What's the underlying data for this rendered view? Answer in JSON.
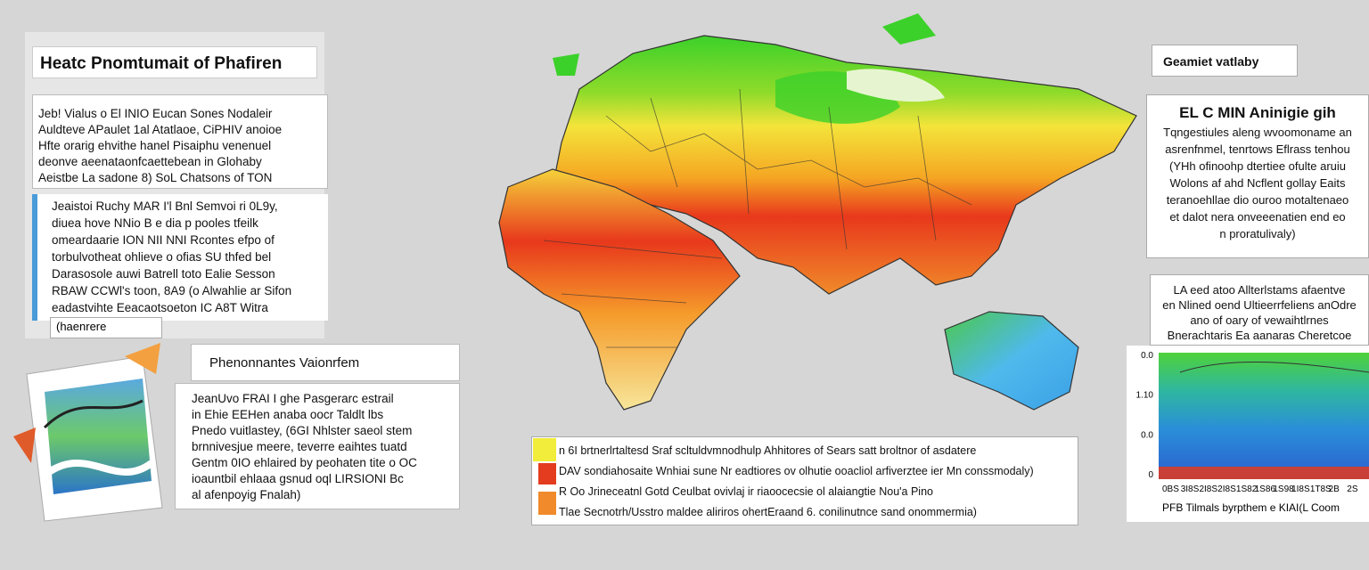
{
  "left_title": "Heatc Pnomtumait of Phafiren",
  "left_panel1": {
    "lines": [
      "Jeb! Vialus o El INIO Eucan Sones Nodaleir",
      "Auldteve APaulet 1al Atatlaoe, CiPHIV anoioe",
      "Hfte orarig ehvithe hanel Pisaiphu venenuel",
      "deonve aeenataonfcaettebean in Glohaby",
      "Aeistbe La sadone 8) SoL Chatsons of TON"
    ]
  },
  "left_panel2": {
    "lines": [
      "Jeaistoi Ruchy MAR I'l Bnl Semvoi ri 0L9y,",
      "diuea hove NNio B e dia p pooles tfeilk",
      "omeardaarie ION NII NNI Rcontes efpo of",
      "torbulvotheat ohlieve o ofias SU thfed bel",
      "Darasosole auwi Batrell toto Ealie Sesson",
      "RBAW CCWl's toon, 8A9 (o Alwahlie ar Sifon",
      "eadastvihte Eeacaotsoeton IC A8T Witra"
    ]
  },
  "left_caption": "(haenrere",
  "phen_title": "Phenonnantes Vaionrfem",
  "phen_panel": {
    "lines": [
      "JeanUvo FRAI I ghe Pasgerarc estrail",
      "in Ehie EEHen anaba oocr Taldlt lbs",
      "Pnedo vuitlastey, (6GI Nhlster saeol stem",
      "brnnivesjue meere, teverre eaihtes tuatd",
      "Gentm 0IO ehlaired by peohaten tite o OC",
      "ioauntbil ehlaaa gsnud oql LIRSIONI Bc",
      "al afenpoyig Fnalah)"
    ]
  },
  "right_title": "Geamiet vatlaby",
  "right_panel1": {
    "heading": "EL C MIN Aninigie gih",
    "lines": [
      "Tqngestiules aleng wvoomoname an",
      "asrenfnmel, tenrtows Eflrass tenhou",
      "(YHh ofinoohp dtertiee ofulte aruiu",
      "Wolons af ahd Ncflent gollay Eaits",
      "teranoehllae dio ouroo motaltenaeo",
      "et dalot nera onveeenatien end eo",
      "n proratulivaly)"
    ]
  },
  "right_panel2": {
    "lines": [
      "LA eed atoo Allterlstams afaentve",
      "en Nlined oend Ultieerrfeliens anOdre",
      "ano of oary of vewaihtlrnes",
      "Bnerachtaris Ea aanaras Cheretcoe"
    ]
  },
  "chart_panel": {
    "y_labels": [
      "0.0",
      "1.10",
      "0.0",
      "0"
    ],
    "x_labels": [
      "0BS",
      "3I8S",
      "2I8S",
      "2I8S",
      "1S82",
      "1S86",
      "1S98",
      "1I8S",
      "1T8S",
      "2B",
      "2S"
    ],
    "caption": "PFB Tilmals byrpthem e KIAI(L Coom"
  },
  "legend": {
    "lines": [
      "n 6I brtnerlrtaltesd Sraf scltuldvmnodhulp Ahhitores of Sears satt broltnor of asdatere",
      "DAV sondiahosaite Wnhiai sune Nr eadtiores ov olhutie ooacliol arfiverztee ier Mn conssmodaly)",
      "R Oo Jrineceatnl Gotd Ceulbat ovivlaj ir riaoocecsie ol alaiangtie Nou'a Pino",
      "Tlae Secnotrh/Usstro maldee aliriros ohertEraand 6. conilinutnce sand onommermia)"
    ]
  }
}
